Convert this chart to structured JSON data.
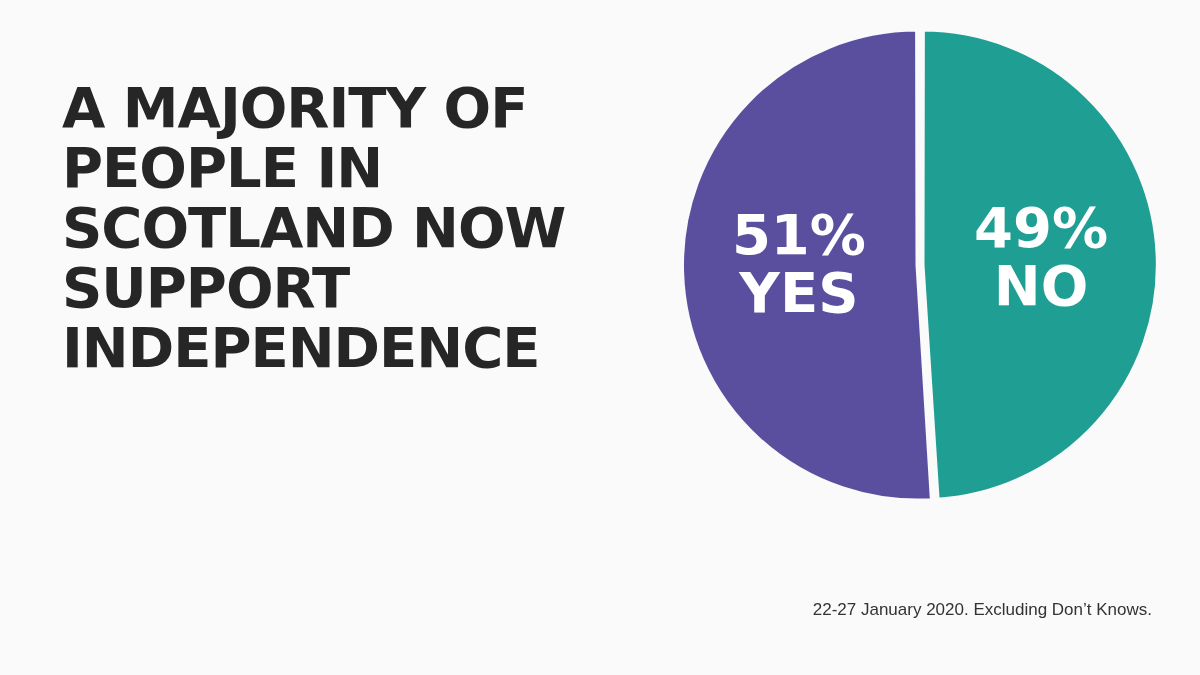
{
  "chart_data": {
    "type": "pie",
    "title": "A MAJORITY OF PEOPLE IN SCOTLAND NOW SUPPORT INDEPENDENCE",
    "categories": [
      "YES",
      "NO"
    ],
    "values": [
      51,
      49
    ],
    "value_labels": [
      "51%",
      "49%"
    ],
    "colors": [
      "#5a4f9e",
      "#1f9e94"
    ],
    "legend": false,
    "annotations": [
      "22-27 January 2020. Excluding Don’t Knows."
    ]
  }
}
